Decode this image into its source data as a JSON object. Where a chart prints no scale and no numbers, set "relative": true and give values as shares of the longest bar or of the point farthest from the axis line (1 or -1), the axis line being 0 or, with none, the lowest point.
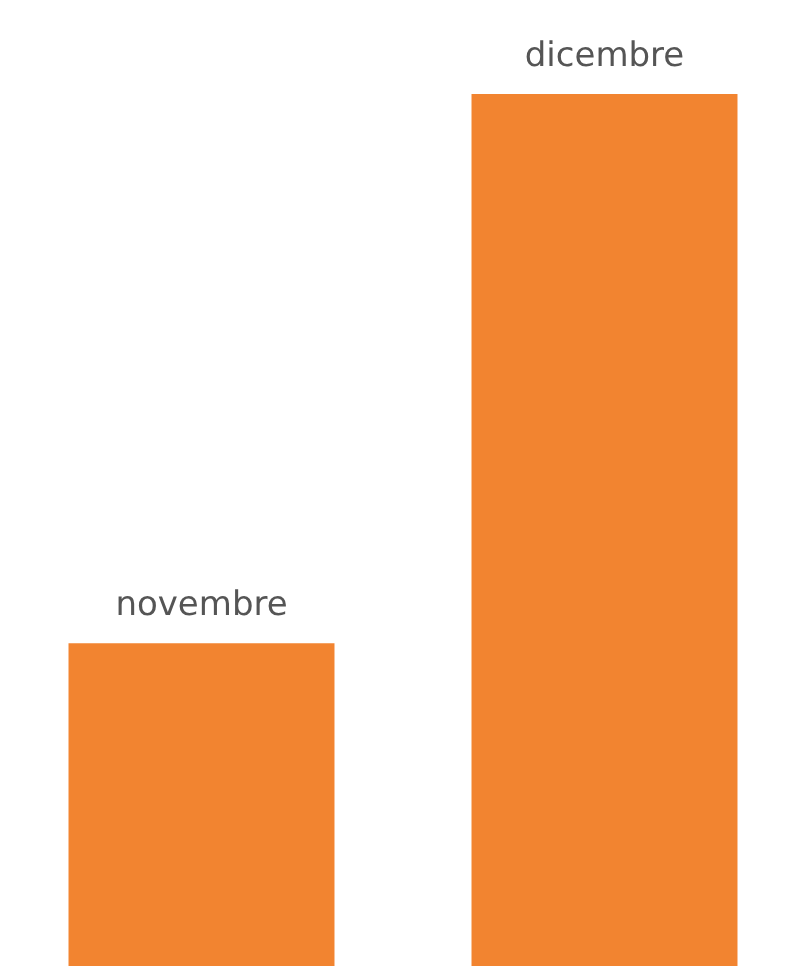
{
  "chart_data": {
    "type": "bar",
    "categories": [
      "novembre",
      "dicembre"
    ],
    "values": [
      0.37,
      1
    ],
    "color": "#f28430",
    "relative": true,
    "legend": false
  }
}
